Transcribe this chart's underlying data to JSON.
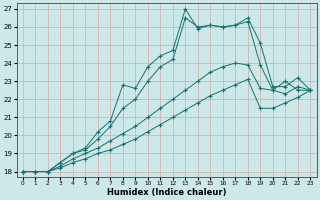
{
  "xlabel": "Humidex (Indice chaleur)",
  "bg_color": "#cce8e8",
  "grid_color": "#d4a8a8",
  "line_color": "#1a7070",
  "xlim": [
    -0.5,
    23.5
  ],
  "ylim": [
    17.7,
    27.3
  ],
  "yticks": [
    18,
    19,
    20,
    21,
    22,
    23,
    24,
    25,
    26,
    27
  ],
  "xticks": [
    0,
    1,
    2,
    3,
    4,
    5,
    6,
    7,
    8,
    9,
    10,
    11,
    12,
    13,
    14,
    15,
    16,
    17,
    18,
    19,
    20,
    21,
    22,
    23
  ],
  "line1_x": [
    0,
    1,
    2,
    3,
    4,
    5,
    6,
    7,
    8,
    9,
    10,
    11,
    12,
    13,
    14,
    15,
    16,
    17,
    18,
    19,
    20,
    21,
    22,
    23
  ],
  "line1_y": [
    18,
    18,
    18,
    18.5,
    19.0,
    19.3,
    20.2,
    20.8,
    22.8,
    22.6,
    23.8,
    24.4,
    24.7,
    27.0,
    25.9,
    26.1,
    26.0,
    26.1,
    26.5,
    25.1,
    22.7,
    22.7,
    23.2,
    22.5
  ],
  "line2_x": [
    0,
    1,
    2,
    3,
    4,
    5,
    6,
    7,
    8,
    9,
    10,
    11,
    12,
    13,
    14,
    15,
    16,
    17,
    18,
    19,
    20,
    21,
    22,
    23
  ],
  "line2_y": [
    18,
    18,
    18,
    18.5,
    19.0,
    19.2,
    19.8,
    20.5,
    21.5,
    22.0,
    23.0,
    23.8,
    24.2,
    26.5,
    26.0,
    26.1,
    26.0,
    26.1,
    26.3,
    23.9,
    22.5,
    22.3,
    22.7,
    22.5
  ],
  "line3_x": [
    0,
    1,
    2,
    3,
    4,
    5,
    6,
    7,
    8,
    9,
    10,
    11,
    12,
    13,
    14,
    15,
    16,
    17,
    18,
    19,
    20,
    21,
    22,
    23
  ],
  "line3_y": [
    18,
    18,
    18,
    18.3,
    18.7,
    19.0,
    19.3,
    19.7,
    20.1,
    20.5,
    21.0,
    21.5,
    22.0,
    22.5,
    23.0,
    23.5,
    23.8,
    24.0,
    23.9,
    22.6,
    22.5,
    23.0,
    22.5,
    22.5
  ],
  "line4_x": [
    0,
    1,
    2,
    3,
    4,
    5,
    6,
    7,
    8,
    9,
    10,
    11,
    12,
    13,
    14,
    15,
    16,
    17,
    18,
    19,
    20,
    21,
    22,
    23
  ],
  "line4_y": [
    18,
    18,
    18,
    18.2,
    18.5,
    18.7,
    19.0,
    19.2,
    19.5,
    19.8,
    20.2,
    20.6,
    21.0,
    21.4,
    21.8,
    22.2,
    22.5,
    22.8,
    23.1,
    21.5,
    21.5,
    21.8,
    22.1,
    22.5
  ]
}
